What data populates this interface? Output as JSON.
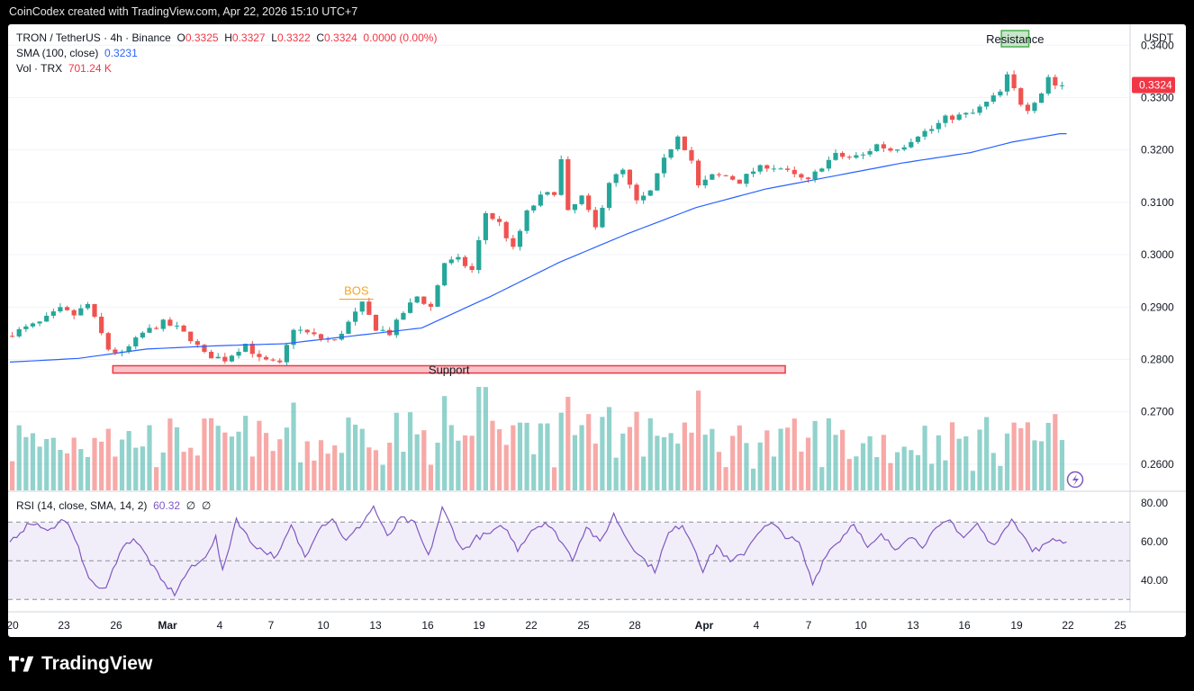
{
  "caption": "CoinCodex created with TradingView.com, Apr 22, 2026 15:10 UTC+7",
  "header": {
    "symbol": "TRON / TetherUS · 4h · Binance",
    "o_label": "O",
    "o_value": "0.3325",
    "h_label": "H",
    "h_value": "0.3327",
    "l_label": "L",
    "l_value": "0.3322",
    "c_label": "C",
    "c_value": "0.3324",
    "change": "0.0000 (0.00%)",
    "sma_label": "SMA (100, close)",
    "sma_value": "0.3231",
    "vol_label": "Vol · TRX",
    "vol_value": "701.24 K",
    "currency": "USDT"
  },
  "rsi_header": {
    "label": "RSI (14, close, SMA, 14, 2)",
    "value": "60.32",
    "na1": "∅",
    "na2": "∅"
  },
  "brand": "TradingView",
  "colors": {
    "up": "#26a69a",
    "down": "#ef5350",
    "sma": "#2962ff",
    "rsi": "#7e57c2",
    "resistance": "#4caf50",
    "support": "#f23645",
    "bos": "#f5a623"
  },
  "chart_data": {
    "type": "candlestick",
    "symbol": "TRXUSDT",
    "interval": "4h",
    "price_axis": {
      "ticks": [
        "0.3400",
        "0.3300",
        "0.3200",
        "0.3100",
        "0.3000",
        "0.2900",
        "0.2800",
        "0.2700",
        "0.2600"
      ],
      "ylim": [
        0.255,
        0.344
      ]
    },
    "x_ticks": [
      "20",
      "23",
      "26",
      "Mar",
      "4",
      "7",
      "10",
      "13",
      "16",
      "19",
      "22",
      "25",
      "28",
      "Apr",
      "4",
      "7",
      "10",
      "13",
      "16",
      "19",
      "22",
      "25"
    ],
    "current_price_label": "0.3324",
    "price_path": [
      [
        0,
        0.2845
      ],
      [
        5,
        0.287
      ],
      [
        8,
        0.2895
      ],
      [
        10,
        0.2885
      ],
      [
        12,
        0.2905
      ],
      [
        15,
        0.282
      ],
      [
        17,
        0.281
      ],
      [
        20,
        0.285
      ],
      [
        23,
        0.287
      ],
      [
        25,
        0.286
      ],
      [
        27,
        0.284
      ],
      [
        29,
        0.281
      ],
      [
        32,
        0.28
      ],
      [
        35,
        0.283
      ],
      [
        37,
        0.28
      ],
      [
        40,
        0.279
      ],
      [
        42,
        0.286
      ],
      [
        44,
        0.285
      ],
      [
        46,
        0.284
      ],
      [
        48,
        0.2835
      ],
      [
        50,
        0.287
      ],
      [
        52,
        0.2905
      ],
      [
        54,
        0.286
      ],
      [
        56,
        0.285
      ],
      [
        58,
        0.289
      ],
      [
        60,
        0.292
      ],
      [
        62,
        0.29
      ],
      [
        64,
        0.2985
      ],
      [
        66,
        0.299
      ],
      [
        68,
        0.297
      ],
      [
        70,
        0.308
      ],
      [
        72,
        0.306
      ],
      [
        74,
        0.301
      ],
      [
        76,
        0.308
      ],
      [
        78,
        0.311
      ],
      [
        80,
        0.312
      ],
      [
        81,
        0.318
      ],
      [
        82,
        0.308
      ],
      [
        84,
        0.311
      ],
      [
        86,
        0.305
      ],
      [
        88,
        0.314
      ],
      [
        90,
        0.316
      ],
      [
        92,
        0.31
      ],
      [
        94,
        0.312
      ],
      [
        96,
        0.318
      ],
      [
        98,
        0.323
      ],
      [
        100,
        0.318
      ],
      [
        101,
        0.313
      ],
      [
        103,
        0.315
      ],
      [
        105,
        0.315
      ],
      [
        107,
        0.314
      ],
      [
        109,
        0.316
      ],
      [
        111,
        0.317
      ],
      [
        113,
        0.3165
      ],
      [
        115,
        0.315
      ],
      [
        117,
        0.314
      ],
      [
        119,
        0.317
      ],
      [
        121,
        0.319
      ],
      [
        123,
        0.3185
      ],
      [
        125,
        0.319
      ],
      [
        127,
        0.321
      ],
      [
        129,
        0.32
      ],
      [
        131,
        0.321
      ],
      [
        133,
        0.323
      ],
      [
        135,
        0.324
      ],
      [
        137,
        0.326
      ],
      [
        139,
        0.3265
      ],
      [
        141,
        0.327
      ],
      [
        143,
        0.329
      ],
      [
        145,
        0.331
      ],
      [
        146,
        0.334
      ],
      [
        148,
        0.329
      ],
      [
        149,
        0.328
      ],
      [
        151,
        0.331
      ],
      [
        152,
        0.334
      ],
      [
        153,
        0.3324
      ]
    ],
    "sma_path": [
      [
        0,
        0.2795
      ],
      [
        10,
        0.2802
      ],
      [
        20,
        0.282
      ],
      [
        30,
        0.2826
      ],
      [
        40,
        0.283
      ],
      [
        50,
        0.2845
      ],
      [
        60,
        0.286
      ],
      [
        70,
        0.292
      ],
      [
        80,
        0.2985
      ],
      [
        90,
        0.304
      ],
      [
        100,
        0.309
      ],
      [
        110,
        0.3125
      ],
      [
        120,
        0.315
      ],
      [
        130,
        0.3175
      ],
      [
        140,
        0.3195
      ],
      [
        146,
        0.3215
      ],
      [
        153,
        0.3231
      ]
    ],
    "rsi": {
      "axis_ticks": [
        "80.00",
        "60.00",
        "40.00"
      ],
      "bands": [
        70,
        50,
        30
      ],
      "ylim": [
        25,
        85
      ],
      "path": [
        [
          0,
          60
        ],
        [
          3,
          70
        ],
        [
          6,
          66
        ],
        [
          8,
          72
        ],
        [
          10,
          56
        ],
        [
          12,
          38
        ],
        [
          14,
          35
        ],
        [
          16,
          55
        ],
        [
          18,
          62
        ],
        [
          20,
          52
        ],
        [
          22,
          40
        ],
        [
          24,
          33
        ],
        [
          26,
          45
        ],
        [
          28,
          50
        ],
        [
          30,
          62
        ],
        [
          31,
          44
        ],
        [
          33,
          72
        ],
        [
          35,
          60
        ],
        [
          37,
          55
        ],
        [
          39,
          52
        ],
        [
          41,
          68
        ],
        [
          43,
          52
        ],
        [
          45,
          67
        ],
        [
          47,
          72
        ],
        [
          49,
          60
        ],
        [
          51,
          68
        ],
        [
          53,
          78
        ],
        [
          55,
          62
        ],
        [
          57,
          72
        ],
        [
          59,
          69
        ],
        [
          61,
          52
        ],
        [
          63,
          77
        ],
        [
          64,
          70
        ],
        [
          66,
          55
        ],
        [
          68,
          62
        ],
        [
          70,
          64
        ],
        [
          72,
          68
        ],
        [
          74,
          56
        ],
        [
          76,
          66
        ],
        [
          78,
          70
        ],
        [
          80,
          62
        ],
        [
          82,
          51
        ],
        [
          84,
          68
        ],
        [
          86,
          59
        ],
        [
          88,
          74
        ],
        [
          90,
          61
        ],
        [
          92,
          52
        ],
        [
          94,
          45
        ],
        [
          96,
          64
        ],
        [
          98,
          69
        ],
        [
          100,
          55
        ],
        [
          101,
          45
        ],
        [
          103,
          58
        ],
        [
          105,
          49
        ],
        [
          107,
          54
        ],
        [
          109,
          65
        ],
        [
          111,
          69
        ],
        [
          113,
          63
        ],
        [
          115,
          59
        ],
        [
          117,
          38
        ],
        [
          119,
          54
        ],
        [
          121,
          61
        ],
        [
          123,
          70
        ],
        [
          125,
          56
        ],
        [
          127,
          63
        ],
        [
          129,
          56
        ],
        [
          131,
          63
        ],
        [
          133,
          58
        ],
        [
          135,
          66
        ],
        [
          137,
          71
        ],
        [
          139,
          62
        ],
        [
          141,
          69
        ],
        [
          143,
          58
        ],
        [
          145,
          65
        ],
        [
          146,
          73
        ],
        [
          148,
          61
        ],
        [
          149,
          55
        ],
        [
          151,
          58
        ],
        [
          152,
          62
        ],
        [
          153,
          60.32
        ]
      ]
    },
    "annotations": {
      "resistance": {
        "label": "Resistance",
        "top": 0.3428,
        "bottom": 0.3397,
        "x_from": 144.5,
        "x_to": 148.5
      },
      "support": {
        "label": "Support",
        "top": 0.2788,
        "bottom": 0.2774,
        "x_from": 15,
        "x_to": 113
      },
      "bos": {
        "label": "BOS",
        "level": 0.2915,
        "x_from": 48,
        "x_to": 53
      }
    }
  }
}
